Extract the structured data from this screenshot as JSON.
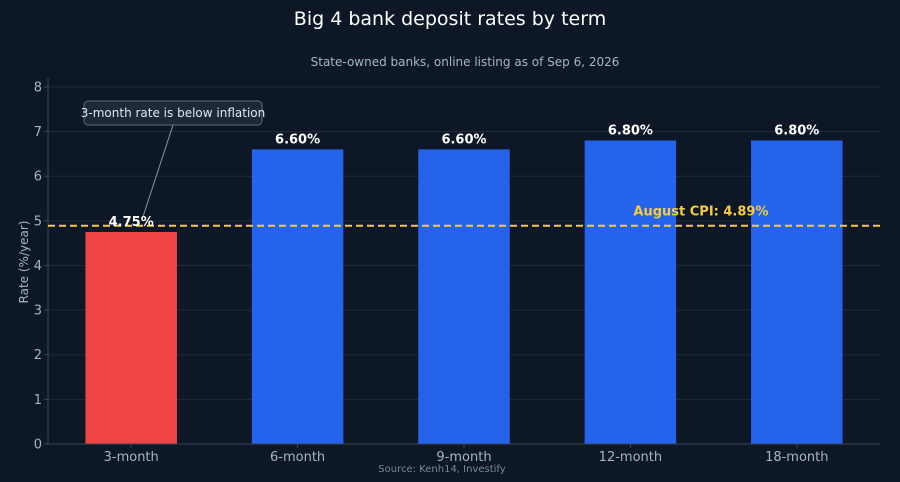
{
  "chart_data": {
    "type": "bar",
    "title": "Big 4 bank deposit rates by term",
    "subtitle": "State-owned banks, online listing as of Sep 6, 2026",
    "source": "Source: Kenh14, Investify",
    "ylabel": "Rate (%/year)",
    "xlabel": "",
    "ylim": [
      0,
      8.2
    ],
    "yticks": [
      0,
      1,
      2,
      3,
      4,
      5,
      6,
      7,
      8
    ],
    "grid": true,
    "categories": [
      "3-month",
      "6-month",
      "9-month",
      "12-month",
      "18-month"
    ],
    "values": [
      4.75,
      6.6,
      6.6,
      6.8,
      6.8
    ],
    "value_labels": [
      "4.75%",
      "6.60%",
      "6.60%",
      "6.80%",
      "6.80%"
    ],
    "bar_colors": [
      "#ef4444",
      "#2563eb",
      "#2563eb",
      "#2563eb",
      "#2563eb"
    ],
    "reference_line": {
      "value": 4.89,
      "label": "August CPI: 4.89%",
      "color": "#f5cc3a",
      "style": "dashed"
    },
    "annotation": {
      "text": "3-month rate is below inflation",
      "target_category": "3-month"
    },
    "colors": {
      "background": "#0e1726",
      "grid": "#1f2a3a",
      "axis": "#3a4556"
    }
  }
}
